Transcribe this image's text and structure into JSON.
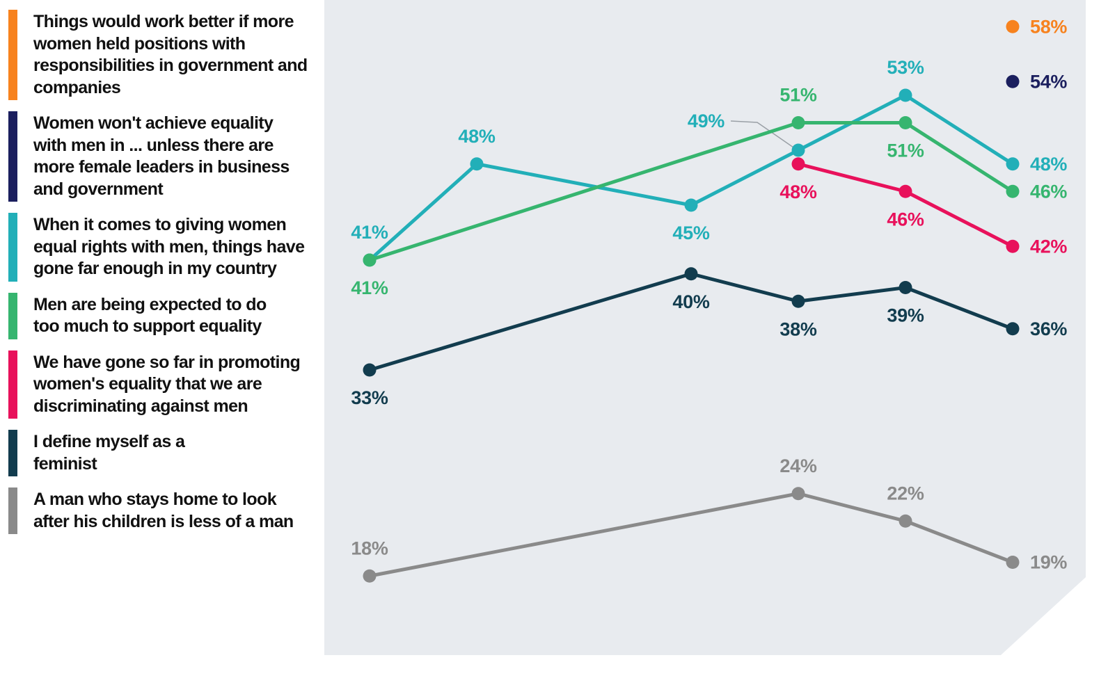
{
  "chart_data": {
    "type": "line",
    "categories": [
      null,
      null,
      null,
      null,
      null,
      null,
      null
    ],
    "ylim": [
      10,
      60
    ],
    "span_gaps": true,
    "series": [
      {
        "name": "Things would work better if more women held positions with responsibilities in government and companies",
        "color": "#f7821e",
        "values": [
          null,
          null,
          null,
          null,
          null,
          null,
          58
        ],
        "value_labels": [
          null,
          null,
          null,
          null,
          null,
          null,
          "58%"
        ]
      },
      {
        "name": "Women won't achieve equality with men in ... unless there are more female leaders in business and government",
        "color": "#1b1f5e",
        "values": [
          null,
          null,
          null,
          null,
          null,
          null,
          54
        ],
        "value_labels": [
          null,
          null,
          null,
          null,
          null,
          null,
          "54%"
        ]
      },
      {
        "name": "When it comes to giving women equal rights with men, things have gone far enough in my country",
        "color": "#22afb8",
        "values": [
          41,
          48,
          null,
          45,
          49,
          53,
          48
        ],
        "value_labels": [
          "41%",
          "48%",
          null,
          "45%",
          "49%",
          "53%",
          "48%"
        ]
      },
      {
        "name": "Men are being expected to do too much to support equality",
        "color": "#36b56f",
        "values": [
          41,
          null,
          null,
          null,
          51,
          51,
          46
        ],
        "value_labels": [
          "41%",
          null,
          null,
          null,
          "51%",
          "51%",
          "46%"
        ]
      },
      {
        "name": "We have gone so far in promoting women's equality that we are discriminating against men",
        "color": "#e8115b",
        "values": [
          null,
          null,
          null,
          null,
          48,
          46,
          42
        ],
        "value_labels": [
          null,
          null,
          null,
          null,
          "48%",
          "46%",
          "42%"
        ]
      },
      {
        "name": "I define myself as a feminist",
        "color": "#123c4e",
        "values": [
          33,
          null,
          null,
          40,
          38,
          39,
          36
        ],
        "value_labels": [
          "33%",
          null,
          null,
          "40%",
          "38%",
          "39%",
          "36%"
        ]
      },
      {
        "name": "A man who stays home to look after his children is less of a man",
        "color": "#8a8a8a",
        "values": [
          18,
          null,
          null,
          null,
          24,
          22,
          19
        ],
        "value_labels": [
          "18%",
          null,
          null,
          null,
          "24%",
          "22%",
          "19%"
        ]
      }
    ]
  }
}
